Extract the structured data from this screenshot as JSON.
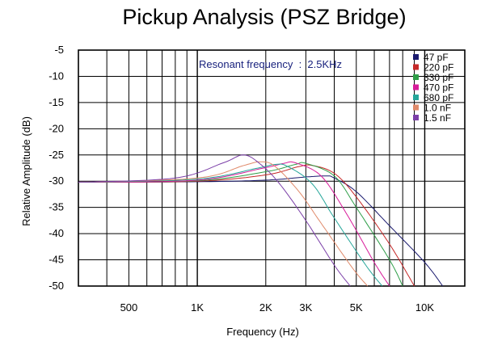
{
  "chart_data": {
    "type": "line",
    "title": "Pickup Analysis (PSZ Bridge)",
    "xlabel": "Frequency (Hz)",
    "ylabel": "Relative Amplitude (dB)",
    "annotation": "Resonant frequency  :  2.5KHz",
    "x_scale": "log",
    "xlim": [
      300,
      15000
    ],
    "ylim": [
      -50,
      -5
    ],
    "x_ticks": [
      {
        "value": 500,
        "label": "500"
      },
      {
        "value": 1000,
        "label": "1K"
      },
      {
        "value": 2000,
        "label": "2K"
      },
      {
        "value": 3000,
        "label": "3K"
      },
      {
        "value": 5000,
        "label": "5K"
      },
      {
        "value": 10000,
        "label": "10K"
      }
    ],
    "y_ticks": [
      -5,
      -10,
      -15,
      -20,
      -25,
      -30,
      -35,
      -40,
      -45,
      -50
    ],
    "grid": true,
    "legend_position": "top-right",
    "series": [
      {
        "name": "47 pF",
        "color": "#1a1a6e",
        "x": [
          300,
          1000,
          2000,
          3000,
          3700,
          4000,
          5000,
          7000,
          10000,
          12000
        ],
        "y": [
          -30.2,
          -30.1,
          -29.8,
          -29.2,
          -29.0,
          -29.4,
          -32.0,
          -38.5,
          -45.5,
          -50.0
        ]
      },
      {
        "name": "220 pF",
        "color": "#c62828",
        "x": [
          300,
          1000,
          2000,
          2800,
          3200,
          4000,
          5000,
          7000,
          9000
        ],
        "y": [
          -30.2,
          -30.0,
          -28.8,
          -27.2,
          -27.0,
          -28.5,
          -33.0,
          -42.0,
          -50.0
        ]
      },
      {
        "name": "330 pF",
        "color": "#2e9e48",
        "x": [
          300,
          1000,
          2000,
          2700,
          3000,
          4000,
          5000,
          7000,
          8000
        ],
        "y": [
          -30.2,
          -29.9,
          -28.2,
          -26.8,
          -26.6,
          -29.0,
          -35.0,
          -45.0,
          -50.0
        ]
      },
      {
        "name": "470 pF",
        "color": "#d81b9a",
        "x": [
          300,
          1000,
          2000,
          2400,
          2700,
          3500,
          4500,
          6000,
          7000
        ],
        "y": [
          -30.2,
          -29.8,
          -27.4,
          -26.6,
          -26.5,
          -29.0,
          -36.0,
          -45.5,
          -50.0
        ]
      },
      {
        "name": "680 pF",
        "color": "#26a69a",
        "x": [
          300,
          1000,
          1800,
          2200,
          2500,
          3200,
          4000,
          5500,
          6500
        ],
        "y": [
          -30.2,
          -29.6,
          -27.6,
          -26.8,
          -27.2,
          -30.5,
          -37.0,
          -46.0,
          -50.0
        ]
      },
      {
        "name": "1.0 nF",
        "color": "#e08a6a",
        "x": [
          300,
          1000,
          1600,
          1900,
          2200,
          2800,
          3500,
          4800,
          5600
        ],
        "y": [
          -30.2,
          -29.4,
          -27.0,
          -26.3,
          -27.2,
          -32.0,
          -38.0,
          -46.5,
          -50.0
        ]
      },
      {
        "name": "1.5 nF",
        "color": "#7b3fa8",
        "x": [
          300,
          800,
          1300,
          1600,
          1900,
          2300,
          3000,
          4000,
          4700
        ],
        "y": [
          -30.2,
          -29.4,
          -26.5,
          -25.0,
          -26.8,
          -30.5,
          -37.5,
          -46.0,
          -50.0
        ]
      }
    ]
  }
}
